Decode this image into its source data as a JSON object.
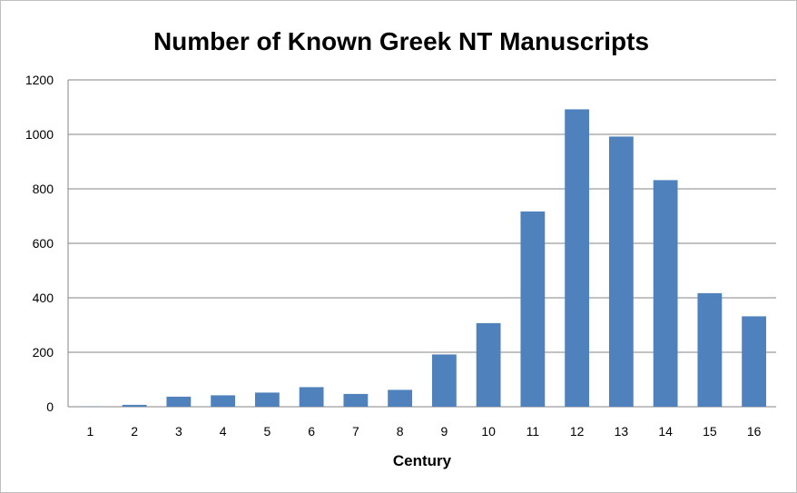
{
  "chart_data": {
    "type": "bar",
    "title": "Number of Known Greek NT Manuscripts",
    "xlabel": "Century",
    "ylabel": "",
    "categories": [
      "1",
      "2",
      "3",
      "4",
      "5",
      "6",
      "7",
      "8",
      "9",
      "10",
      "11",
      "12",
      "13",
      "14",
      "15",
      "16"
    ],
    "values": [
      1,
      7,
      37,
      42,
      52,
      72,
      47,
      62,
      192,
      307,
      717,
      1092,
      992,
      832,
      417,
      332
    ],
    "ylim": [
      0,
      1200
    ],
    "yticks": [
      "0",
      "200",
      "400",
      "600",
      "800",
      "1000",
      "1200"
    ],
    "grid": true,
    "legend": "none",
    "bar_color": "#4f81bd",
    "grid_color": "#868686"
  }
}
